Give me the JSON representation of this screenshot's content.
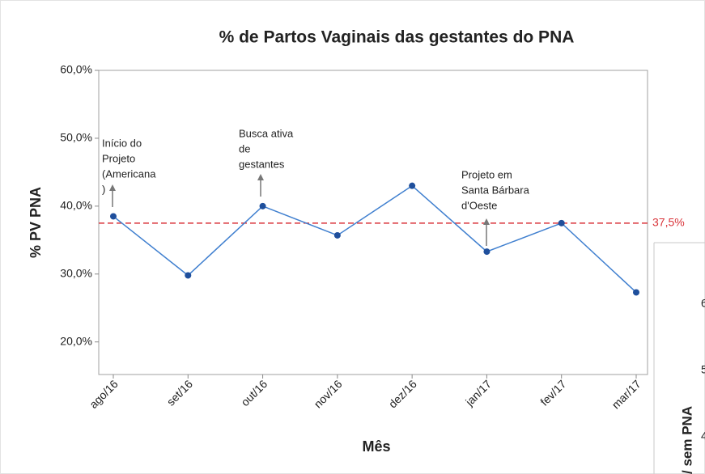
{
  "chart_data": {
    "type": "line",
    "title": "% de Partos Vaginais das gestantes do PNA",
    "x_label": "Mês",
    "y_label": "% PV PNA",
    "categories": [
      "ago/16",
      "set/16",
      "out/16",
      "nov/16",
      "dez/16",
      "jan/17",
      "fev/17",
      "mar/17"
    ],
    "series": [
      {
        "name": "% PV PNA",
        "color": "#3f7fcf",
        "marker_color": "#1f4f9c",
        "values": [
          38.5,
          29.8,
          40.0,
          35.7,
          43.0,
          33.3,
          37.5,
          27.3
        ]
      }
    ],
    "ylim": [
      15.2,
      60
    ],
    "yticks": [
      {
        "value": 20,
        "label": "20,0%"
      },
      {
        "value": 30,
        "label": "30,0%"
      },
      {
        "value": 40,
        "label": "40,0%"
      },
      {
        "value": 50,
        "label": "50,0%"
      },
      {
        "value": 60,
        "label": "60,0%"
      }
    ],
    "reference_line": {
      "value": 37.5,
      "label": "37,5%",
      "color": "#d9343a"
    },
    "annotations": [
      {
        "lines": [
          "Início do",
          "Projeto",
          "(Americana",
          ")"
        ]
      },
      {
        "lines": [
          "Busca ativa",
          "de",
          "gestantes"
        ]
      },
      {
        "lines": [
          "Projeto em",
          "Santa Bárbara",
          "d'Oeste"
        ]
      }
    ],
    "fragment": {
      "ticks": [
        "6",
        "5",
        "4"
      ],
      "axis_label": "/ sem PNA"
    }
  }
}
